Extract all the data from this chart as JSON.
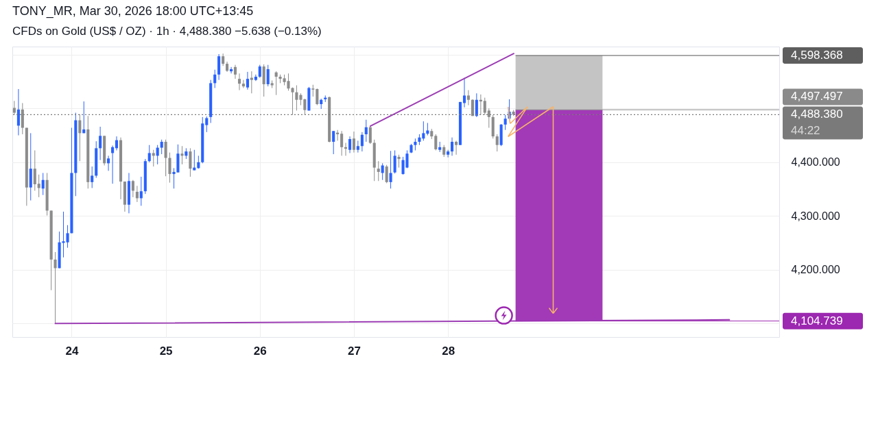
{
  "chart_data": {
    "type": "candlestick",
    "title": "TONY_MR, Mar 30, 2026 18:00 UTC+13:45",
    "subtitle": "CFDs on Gold (US$ / OZ) · 1h · 4,488.380 −5.638 (−0.13%)",
    "x": [
      23.391,
      23.435,
      23.478,
      23.522,
      23.565,
      23.609,
      23.652,
      23.696,
      23.739,
      23.783,
      23.826,
      23.87,
      23.913,
      23.957,
      24,
      24.043,
      24.087,
      24.13,
      24.174,
      24.217,
      24.261,
      24.304,
      24.348,
      24.391,
      24.435,
      24.478,
      24.522,
      24.565,
      24.609,
      24.652,
      24.696,
      24.739,
      24.783,
      24.826,
      24.87,
      24.913,
      24.957,
      25,
      25.043,
      25.087,
      25.13,
      25.174,
      25.217,
      25.261,
      25.304,
      25.348,
      25.391,
      25.435,
      25.478,
      25.522,
      25.565,
      25.609,
      25.652,
      25.696,
      25.739,
      25.783,
      25.826,
      25.87,
      25.913,
      25.957,
      26,
      26.043,
      26.087,
      26.13,
      26.174,
      26.217,
      26.261,
      26.304,
      26.348,
      26.391,
      26.435,
      26.478,
      26.522,
      26.565,
      26.609,
      26.652,
      26.696,
      26.739,
      26.783,
      26.826,
      26.87,
      26.913,
      26.957,
      27,
      27.043,
      27.087,
      27.13,
      27.174,
      27.217,
      27.261,
      27.304,
      27.348,
      27.391,
      27.435,
      27.478,
      27.522,
      27.565,
      27.609,
      27.652,
      27.696,
      27.739,
      27.783,
      27.826,
      27.87,
      27.913,
      27.957,
      28,
      28.043,
      28.087,
      28.13,
      28.174,
      28.217,
      28.261,
      28.304,
      28.348,
      28.391,
      28.435,
      28.478,
      28.522,
      28.565,
      28.609,
      28.652,
      28.696
    ],
    "ohlc": [
      [
        4501,
        4514,
        4488,
        4492
      ],
      [
        4468,
        4536,
        4450,
        4498
      ],
      [
        4498,
        4510,
        4452,
        4464
      ],
      [
        4464,
        4464,
        4319,
        4353
      ],
      [
        4353,
        4454,
        4329,
        4388
      ],
      [
        4388,
        4422,
        4347,
        4359
      ],
      [
        4360,
        4377,
        4335,
        4352
      ],
      [
        4351,
        4380,
        4339,
        4367
      ],
      [
        4367,
        4380,
        4301,
        4310
      ],
      [
        4310,
        4310,
        4162,
        4219
      ],
      [
        4219,
        4233,
        4100,
        4203
      ],
      [
        4203,
        4271,
        4203,
        4251
      ],
      [
        4250,
        4308,
        4223,
        4253
      ],
      [
        4251,
        4283,
        4241,
        4268
      ],
      [
        4268,
        4464,
        4268,
        4380
      ],
      [
        4380,
        4492,
        4337,
        4478
      ],
      [
        4478,
        4489,
        4402,
        4454
      ],
      [
        4454,
        4513,
        4454,
        4461
      ],
      [
        4461,
        4486,
        4351,
        4363
      ],
      [
        4363,
        4392,
        4352,
        4375
      ],
      [
        4375,
        4439,
        4371,
        4426
      ],
      [
        4426,
        4466,
        4404,
        4449
      ],
      [
        4449,
        4449,
        4394,
        4398
      ],
      [
        4398,
        4412,
        4384,
        4407
      ],
      [
        4417,
        4431,
        4360,
        4428
      ],
      [
        4426,
        4448,
        4422,
        4441
      ],
      [
        4441,
        4446,
        4331,
        4364
      ],
      [
        4364,
        4364,
        4308,
        4321
      ],
      [
        4321,
        4380,
        4305,
        4365
      ],
      [
        4365,
        4367,
        4335,
        4347
      ],
      [
        4345,
        4356,
        4326,
        4333
      ],
      [
        4333,
        4373,
        4319,
        4346
      ],
      [
        4346,
        4406,
        4341,
        4402
      ],
      [
        4402,
        4432,
        4400,
        4417
      ],
      [
        4417,
        4423,
        4392,
        4412
      ],
      [
        4412,
        4432,
        4396,
        4427
      ],
      [
        4427,
        4442,
        4415,
        4438
      ],
      [
        4438,
        4442,
        4374,
        4408
      ],
      [
        4408,
        4418,
        4362,
        4378
      ],
      [
        4378,
        4389,
        4351,
        4382
      ],
      [
        4381,
        4433,
        4381,
        4416
      ],
      [
        4416,
        4430,
        4396,
        4412
      ],
      [
        4412,
        4426,
        4406,
        4420
      ],
      [
        4420,
        4426,
        4373,
        4388
      ],
      [
        4385,
        4423,
        4385,
        4390
      ],
      [
        4389,
        4412,
        4388,
        4400
      ],
      [
        4400,
        4484,
        4398,
        4472
      ],
      [
        4469,
        4485,
        4456,
        4482
      ],
      [
        4484,
        4553,
        4473,
        4547
      ],
      [
        4547,
        4572,
        4538,
        4563
      ],
      [
        4563,
        4601,
        4553,
        4597
      ],
      [
        4597,
        4602,
        4579,
        4583
      ],
      [
        4583,
        4587,
        4568,
        4570
      ],
      [
        4569,
        4577,
        4565,
        4573
      ],
      [
        4577,
        4581,
        4555,
        4563
      ],
      [
        4555,
        4565,
        4534,
        4546
      ],
      [
        4546,
        4553,
        4538,
        4541
      ],
      [
        4539,
        4568,
        4535,
        4555
      ],
      [
        4557,
        4569,
        4528,
        4553
      ],
      [
        4553,
        4563,
        4551,
        4559
      ],
      [
        4559,
        4581,
        4557,
        4578
      ],
      [
        4578,
        4582,
        4522,
        4545
      ],
      [
        4545,
        4581,
        4541,
        4573
      ],
      [
        4547,
        4552,
        4538,
        4543
      ],
      [
        4567,
        4569,
        4525,
        4559
      ],
      [
        4559,
        4563,
        4547,
        4555
      ],
      [
        4556,
        4563,
        4543,
        4549
      ],
      [
        4551,
        4565,
        4533,
        4537
      ],
      [
        4538,
        4539,
        4488,
        4530
      ],
      [
        4530,
        4543,
        4496,
        4516
      ],
      [
        4525,
        4528,
        4506,
        4516
      ],
      [
        4517,
        4518,
        4488,
        4497
      ],
      [
        4496,
        4540,
        4496,
        4538
      ],
      [
        4537,
        4544,
        4522,
        4535
      ],
      [
        4536,
        4537,
        4506,
        4508
      ],
      [
        4508,
        4518,
        4499,
        4516
      ],
      [
        4517,
        4524,
        4512,
        4520
      ],
      [
        4521,
        4522,
        4437,
        4438
      ],
      [
        4438,
        4458,
        4415,
        4458
      ],
      [
        4455,
        4460,
        4440,
        4452
      ],
      [
        4453,
        4458,
        4412,
        4428
      ],
      [
        4428,
        4436,
        4412,
        4425
      ],
      [
        4423,
        4448,
        4417,
        4443
      ],
      [
        4444,
        4457,
        4418,
        4423
      ],
      [
        4423,
        4440,
        4418,
        4430
      ],
      [
        4430,
        4456,
        4420,
        4451
      ],
      [
        4452,
        4479,
        4438,
        4465
      ],
      [
        4465,
        4467,
        4434,
        4436
      ],
      [
        4436,
        4442,
        4365,
        4390
      ],
      [
        4388,
        4402,
        4365,
        4382
      ],
      [
        4380,
        4398,
        4367,
        4394
      ],
      [
        4392,
        4395,
        4361,
        4363
      ],
      [
        4363,
        4421,
        4351,
        4380
      ],
      [
        4381,
        4422,
        4379,
        4412
      ],
      [
        4410,
        4414,
        4390,
        4406
      ],
      [
        4378,
        4410,
        4377,
        4404
      ],
      [
        4390,
        4422,
        4389,
        4416
      ],
      [
        4418,
        4434,
        4417,
        4432
      ],
      [
        4432,
        4444,
        4422,
        4438
      ],
      [
        4438,
        4452,
        4432,
        4446
      ],
      [
        4444,
        4476,
        4440,
        4454
      ],
      [
        4453,
        4473,
        4450,
        4459
      ],
      [
        4458,
        4462,
        4443,
        4448
      ],
      [
        4449,
        4452,
        4422,
        4424
      ],
      [
        4423,
        4438,
        4419,
        4428
      ],
      [
        4428,
        4432,
        4410,
        4414
      ],
      [
        4414,
        4423,
        4409,
        4420
      ],
      [
        4420,
        4446,
        4412,
        4438
      ],
      [
        4438,
        4440,
        4414,
        4432
      ],
      [
        4432,
        4512,
        4432,
        4512
      ],
      [
        4510,
        4557,
        4502,
        4524
      ],
      [
        4524,
        4534,
        4506,
        4516
      ],
      [
        4516,
        4517,
        4486,
        4486
      ],
      [
        4486,
        4528,
        4484,
        4516
      ],
      [
        4516,
        4526,
        4488,
        4513
      ],
      [
        4514,
        4520,
        4488,
        4492
      ],
      [
        4496,
        4500,
        4464,
        4484
      ],
      [
        4484,
        4488,
        4444,
        4448
      ],
      [
        4448,
        4452,
        4420,
        4432
      ],
      [
        4432,
        4471,
        4430,
        4470
      ],
      [
        4470,
        4488,
        4460,
        4481
      ],
      [
        4481,
        4517,
        4480,
        4494
      ],
      [
        4494,
        4497,
        4486,
        4488.38
      ]
    ],
    "colors": [
      "#8c8c8c",
      "#2962ff",
      "#8c8c8c",
      "#8c8c8c",
      "#2962ff",
      "#8c8c8c",
      "#8c8c8c",
      "#2962ff",
      "#8c8c8c",
      "#8c8c8c",
      "#8c8c8c",
      "#2962ff",
      "#2962ff",
      "#2962ff",
      "#2962ff",
      "#2962ff",
      "#8c8c8c",
      "#2962ff",
      "#8c8c8c",
      "#2962ff",
      "#2962ff",
      "#2962ff",
      "#8c8c8c",
      "#2962ff",
      "#2962ff",
      "#2962ff",
      "#8c8c8c",
      "#8c8c8c",
      "#2962ff",
      "#8c8c8c",
      "#8c8c8c",
      "#2962ff",
      "#2962ff",
      "#2962ff",
      "#8c8c8c",
      "#2962ff",
      "#2962ff",
      "#8c8c8c",
      "#8c8c8c",
      "#2962ff",
      "#2962ff",
      "#8c8c8c",
      "#2962ff",
      "#8c8c8c",
      "#2962ff",
      "#2962ff",
      "#2962ff",
      "#2962ff",
      "#2962ff",
      "#2962ff",
      "#2962ff",
      "#8c8c8c",
      "#8c8c8c",
      "#2962ff",
      "#8c8c8c",
      "#8c8c8c",
      "#8c8c8c",
      "#2962ff",
      "#8c8c8c",
      "#2962ff",
      "#2962ff",
      "#8c8c8c",
      "#2962ff",
      "#8c8c8c",
      "#8c8c8c",
      "#8c8c8c",
      "#8c8c8c",
      "#8c8c8c",
      "#8c8c8c",
      "#8c8c8c",
      "#8c8c8c",
      "#8c8c8c",
      "#2962ff",
      "#8c8c8c",
      "#8c8c8c",
      "#2962ff",
      "#2962ff",
      "#8c8c8c",
      "#2962ff",
      "#8c8c8c",
      "#8c8c8c",
      "#8c8c8c",
      "#2962ff",
      "#8c8c8c",
      "#2962ff",
      "#2962ff",
      "#2962ff",
      "#8c8c8c",
      "#8c8c8c",
      "#8c8c8c",
      "#2962ff",
      "#8c8c8c",
      "#2962ff",
      "#2962ff",
      "#8c8c8c",
      "#2962ff",
      "#2962ff",
      "#2962ff",
      "#2962ff",
      "#2962ff",
      "#2962ff",
      "#2962ff",
      "#8c8c8c",
      "#8c8c8c",
      "#2962ff",
      "#8c8c8c",
      "#2962ff",
      "#2962ff",
      "#8c8c8c",
      "#2962ff",
      "#2962ff",
      "#8c8c8c",
      "#8c8c8c",
      "#2962ff",
      "#8c8c8c",
      "#8c8c8c",
      "#8c8c8c",
      "#8c8c8c",
      "#8c8c8c",
      "#2962ff",
      "#2962ff",
      "#2962ff",
      "#8c8c8c"
    ],
    "series": [
      {
        "type": "line",
        "color": "#9c3db4",
        "x": [
          23.826,
          30.99
        ],
        "values": [
          4100,
          4107
        ]
      },
      {
        "type": "line",
        "color": "#9c3db4",
        "x": [
          27.174,
          28.699
        ],
        "values": [
          4467,
          4602
        ]
      }
    ],
    "bands": [
      {
        "axis": "y",
        "from": 4497.497,
        "to": 4598.368,
        "color": "#c4c4c4"
      },
      {
        "axis": "y",
        "from": 4104.739,
        "to": 4497.497,
        "color": "#a23ab7"
      }
    ],
    "ref_lines": [
      {
        "axis": "y",
        "value": 4598.368,
        "label": "4,598.368",
        "color": "#5e5e5e",
        "line_style": "solid"
      },
      {
        "axis": "y",
        "value": 4497.497,
        "label": "4,497.497",
        "color": "#8a8a8a",
        "line_style": "solid"
      },
      {
        "axis": "y",
        "value": 4488.38,
        "label": "4,488.380",
        "color": "#7a7a7a",
        "line_style": "dotted"
      },
      {
        "axis": "y",
        "value": 4104.739,
        "label": "4,104.739",
        "color": "#9c27b0",
        "line_style": "solid"
      }
    ],
    "annotations": [
      "44:22"
    ],
    "xlim": [
      23.37,
      31.52
    ],
    "xticks": [
      24,
      25,
      26,
      27,
      28
    ],
    "ylim": [
      4075,
      4615
    ],
    "yticks": [
      {
        "value": 4100,
        "label": null
      },
      {
        "value": 4200,
        "label": "4,200.000"
      },
      {
        "value": 4300,
        "label": "4,300.000"
      },
      {
        "value": 4400,
        "label": "4,400.000"
      },
      {
        "value": 4500,
        "label": null
      },
      {
        "value": 4600,
        "label": null
      }
    ],
    "grid": true
  }
}
